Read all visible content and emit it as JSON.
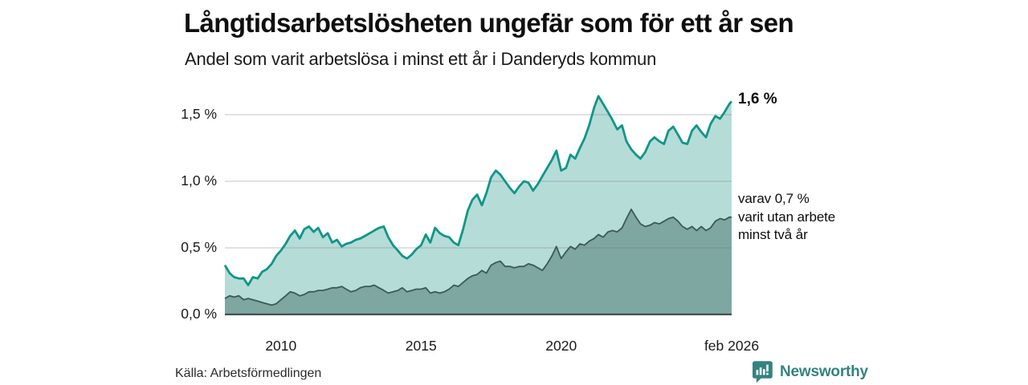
{
  "header": {
    "title": "Långtidsarbetslösheten ungefär som för ett år sen",
    "subtitle": "Andel som varit arbetslösa i minst ett år i Danderyds kommun"
  },
  "footer": {
    "source": "Källa: Arbetsförmedlingen",
    "brand_name": "Newsworthy",
    "brand_color": "#35837e",
    "brand_icon": "speech-bubble-bar-chart-icon"
  },
  "colors": {
    "line_total": "#0f9689",
    "fill_total": "#b6dcd7",
    "line_2yr": "#3c5a54",
    "fill_2yr": "#7da7a0",
    "gridline": "rgba(110,120,125,0.28)",
    "baseline": "#454e4d",
    "text": "#111111"
  },
  "chart_data": {
    "type": "area",
    "title": "Långtidsarbetslösheten ungefär som för ett år sen",
    "subtitle": "Andel som varit arbetslösa i minst ett år i Danderyds kommun",
    "x_unit": "decimal_year",
    "xlim": [
      2008.0,
      2026.083
    ],
    "ylim": [
      0,
      1.7
    ],
    "grid": true,
    "legend_position": "none-annotated-right",
    "yticks": [
      {
        "value": 0.0,
        "label": "0,0 %"
      },
      {
        "value": 0.5,
        "label": "0,5 %"
      },
      {
        "value": 1.0,
        "label": "1,0 %"
      },
      {
        "value": 1.5,
        "label": "1,5 %"
      }
    ],
    "xticks": [
      {
        "value": 2010,
        "label": "2010"
      },
      {
        "value": 2015,
        "label": "2015"
      },
      {
        "value": 2020,
        "label": "2020"
      },
      {
        "value": 2026.083,
        "label": "feb 2026"
      }
    ],
    "x": [
      2008.0,
      2008.17,
      2008.33,
      2008.5,
      2008.67,
      2008.83,
      2009.0,
      2009.17,
      2009.33,
      2009.5,
      2009.67,
      2009.83,
      2010.0,
      2010.17,
      2010.33,
      2010.5,
      2010.67,
      2010.83,
      2011.0,
      2011.17,
      2011.33,
      2011.5,
      2011.67,
      2011.83,
      2012.0,
      2012.17,
      2012.33,
      2012.5,
      2012.67,
      2012.83,
      2013.0,
      2013.17,
      2013.33,
      2013.5,
      2013.67,
      2013.83,
      2014.0,
      2014.17,
      2014.33,
      2014.5,
      2014.67,
      2014.83,
      2015.0,
      2015.17,
      2015.33,
      2015.5,
      2015.67,
      2015.83,
      2016.0,
      2016.17,
      2016.33,
      2016.5,
      2016.67,
      2016.83,
      2017.0,
      2017.17,
      2017.33,
      2017.5,
      2017.67,
      2017.83,
      2018.0,
      2018.17,
      2018.33,
      2018.5,
      2018.67,
      2018.83,
      2019.0,
      2019.17,
      2019.33,
      2019.5,
      2019.67,
      2019.83,
      2020.0,
      2020.17,
      2020.33,
      2020.5,
      2020.67,
      2020.83,
      2021.0,
      2021.17,
      2021.33,
      2021.5,
      2021.67,
      2021.83,
      2022.0,
      2022.17,
      2022.33,
      2022.5,
      2022.67,
      2022.83,
      2023.0,
      2023.17,
      2023.33,
      2023.5,
      2023.67,
      2023.83,
      2024.0,
      2024.17,
      2024.33,
      2024.5,
      2024.67,
      2024.83,
      2025.0,
      2025.17,
      2025.33,
      2025.5,
      2025.67,
      2025.83,
      2026.0,
      2026.08
    ],
    "series": [
      {
        "name": "Andel arbetslösa minst ett år",
        "end_value_label": "1,6 %",
        "values": [
          0.37,
          0.31,
          0.28,
          0.27,
          0.27,
          0.22,
          0.28,
          0.27,
          0.32,
          0.34,
          0.38,
          0.44,
          0.48,
          0.53,
          0.59,
          0.63,
          0.57,
          0.64,
          0.66,
          0.62,
          0.65,
          0.58,
          0.61,
          0.54,
          0.56,
          0.51,
          0.53,
          0.54,
          0.56,
          0.57,
          0.59,
          0.61,
          0.63,
          0.65,
          0.66,
          0.58,
          0.52,
          0.48,
          0.44,
          0.42,
          0.45,
          0.49,
          0.52,
          0.6,
          0.54,
          0.65,
          0.61,
          0.59,
          0.58,
          0.54,
          0.52,
          0.64,
          0.78,
          0.86,
          0.9,
          0.82,
          0.91,
          1.03,
          1.08,
          1.05,
          1.0,
          0.95,
          0.91,
          0.96,
          1.0,
          0.99,
          0.93,
          0.98,
          1.04,
          1.1,
          1.16,
          1.23,
          1.08,
          1.1,
          1.2,
          1.17,
          1.25,
          1.32,
          1.42,
          1.55,
          1.64,
          1.58,
          1.52,
          1.46,
          1.39,
          1.42,
          1.3,
          1.24,
          1.2,
          1.17,
          1.22,
          1.3,
          1.33,
          1.3,
          1.28,
          1.38,
          1.41,
          1.35,
          1.29,
          1.28,
          1.38,
          1.42,
          1.37,
          1.33,
          1.43,
          1.49,
          1.47,
          1.52,
          1.58,
          1.6
        ]
      },
      {
        "name": "varav utan arbete minst två år",
        "end_value_label": "0,7 %",
        "values": [
          0.12,
          0.14,
          0.13,
          0.14,
          0.11,
          0.12,
          0.11,
          0.1,
          0.09,
          0.08,
          0.07,
          0.08,
          0.11,
          0.14,
          0.17,
          0.16,
          0.14,
          0.15,
          0.17,
          0.17,
          0.18,
          0.18,
          0.19,
          0.2,
          0.2,
          0.21,
          0.19,
          0.17,
          0.18,
          0.2,
          0.21,
          0.21,
          0.22,
          0.2,
          0.18,
          0.16,
          0.17,
          0.18,
          0.2,
          0.17,
          0.18,
          0.19,
          0.19,
          0.2,
          0.16,
          0.17,
          0.16,
          0.17,
          0.19,
          0.22,
          0.21,
          0.24,
          0.27,
          0.29,
          0.3,
          0.33,
          0.31,
          0.37,
          0.39,
          0.4,
          0.36,
          0.36,
          0.35,
          0.36,
          0.36,
          0.38,
          0.37,
          0.35,
          0.33,
          0.38,
          0.44,
          0.51,
          0.42,
          0.47,
          0.51,
          0.49,
          0.53,
          0.52,
          0.55,
          0.57,
          0.6,
          0.58,
          0.62,
          0.63,
          0.62,
          0.65,
          0.72,
          0.79,
          0.73,
          0.68,
          0.66,
          0.67,
          0.69,
          0.68,
          0.7,
          0.72,
          0.73,
          0.7,
          0.66,
          0.64,
          0.66,
          0.63,
          0.66,
          0.63,
          0.65,
          0.7,
          0.72,
          0.71,
          0.73,
          0.73
        ]
      }
    ],
    "callouts": [
      {
        "text": "1,6 %",
        "series": 0,
        "style": "bold"
      },
      {
        "text": "varav 0,7 %\nvarit utan arbete\nminst två år",
        "series": 1,
        "style": "regular"
      }
    ]
  }
}
